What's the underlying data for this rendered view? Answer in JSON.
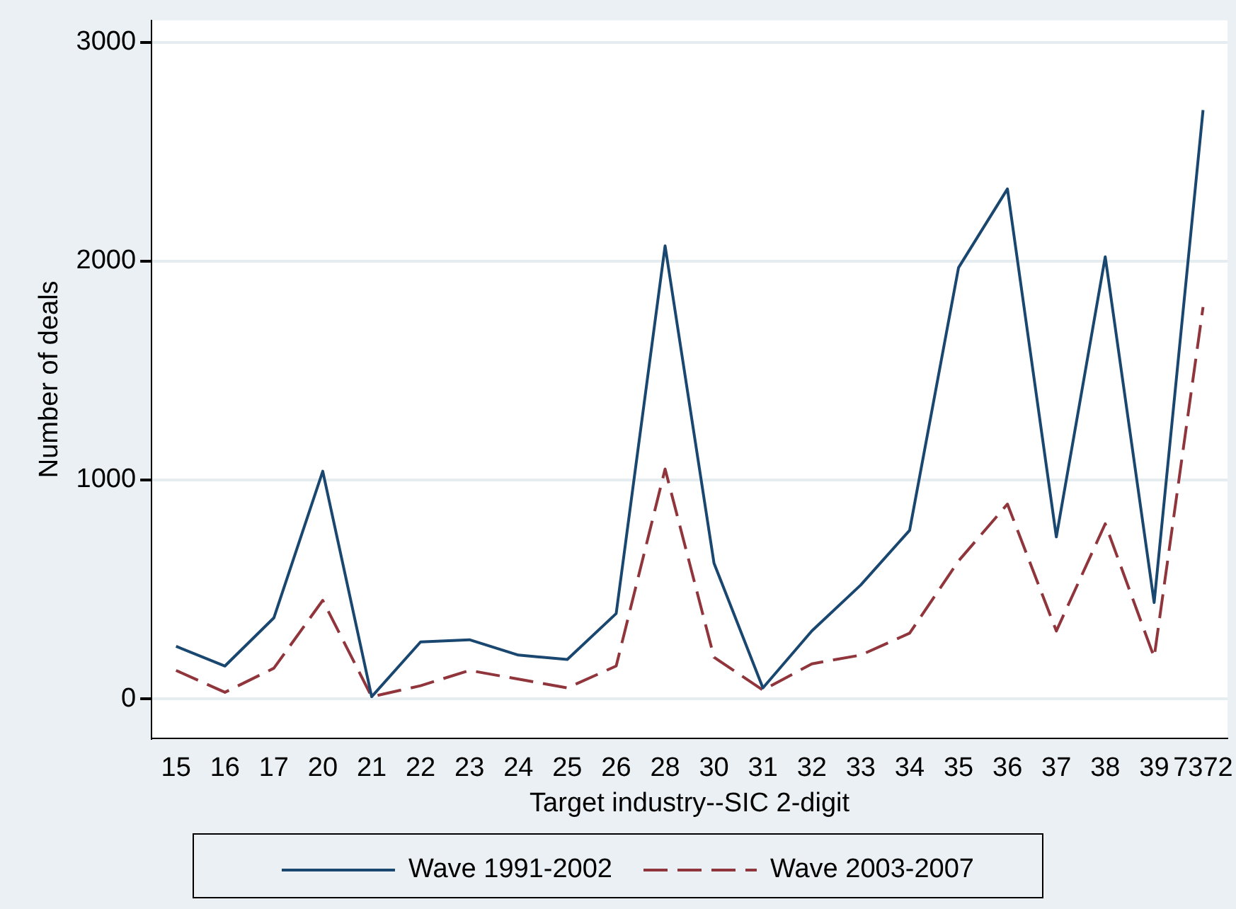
{
  "chart_data": {
    "type": "line",
    "xlabel": "Target industry--SIC 2-digit",
    "ylabel": "Number of deals",
    "categories": [
      "15",
      "16",
      "17",
      "20",
      "21",
      "22",
      "23",
      "24",
      "25",
      "26",
      "28",
      "30",
      "31",
      "32",
      "33",
      "34",
      "35",
      "36",
      "37",
      "38",
      "39",
      "7372"
    ],
    "series": [
      {
        "name": "Wave 1991-2002",
        "color": "#1a476f",
        "line_style": "solid",
        "values": [
          240,
          150,
          370,
          1040,
          10,
          260,
          270,
          200,
          180,
          390,
          2070,
          620,
          50,
          310,
          520,
          770,
          1970,
          2330,
          740,
          2020,
          440,
          2690
        ]
      },
      {
        "name": "Wave 2003-2007",
        "color": "#90353b",
        "line_style": "dashed",
        "values": [
          130,
          30,
          140,
          450,
          10,
          60,
          130,
          90,
          50,
          150,
          1050,
          190,
          40,
          160,
          200,
          300,
          630,
          890,
          310,
          800,
          190,
          1790
        ]
      }
    ],
    "ylim": [
      -180,
      3100
    ],
    "yticks": [
      0,
      1000,
      2000,
      3000
    ],
    "grid": "y",
    "legend": "bottom",
    "marker": "none"
  }
}
